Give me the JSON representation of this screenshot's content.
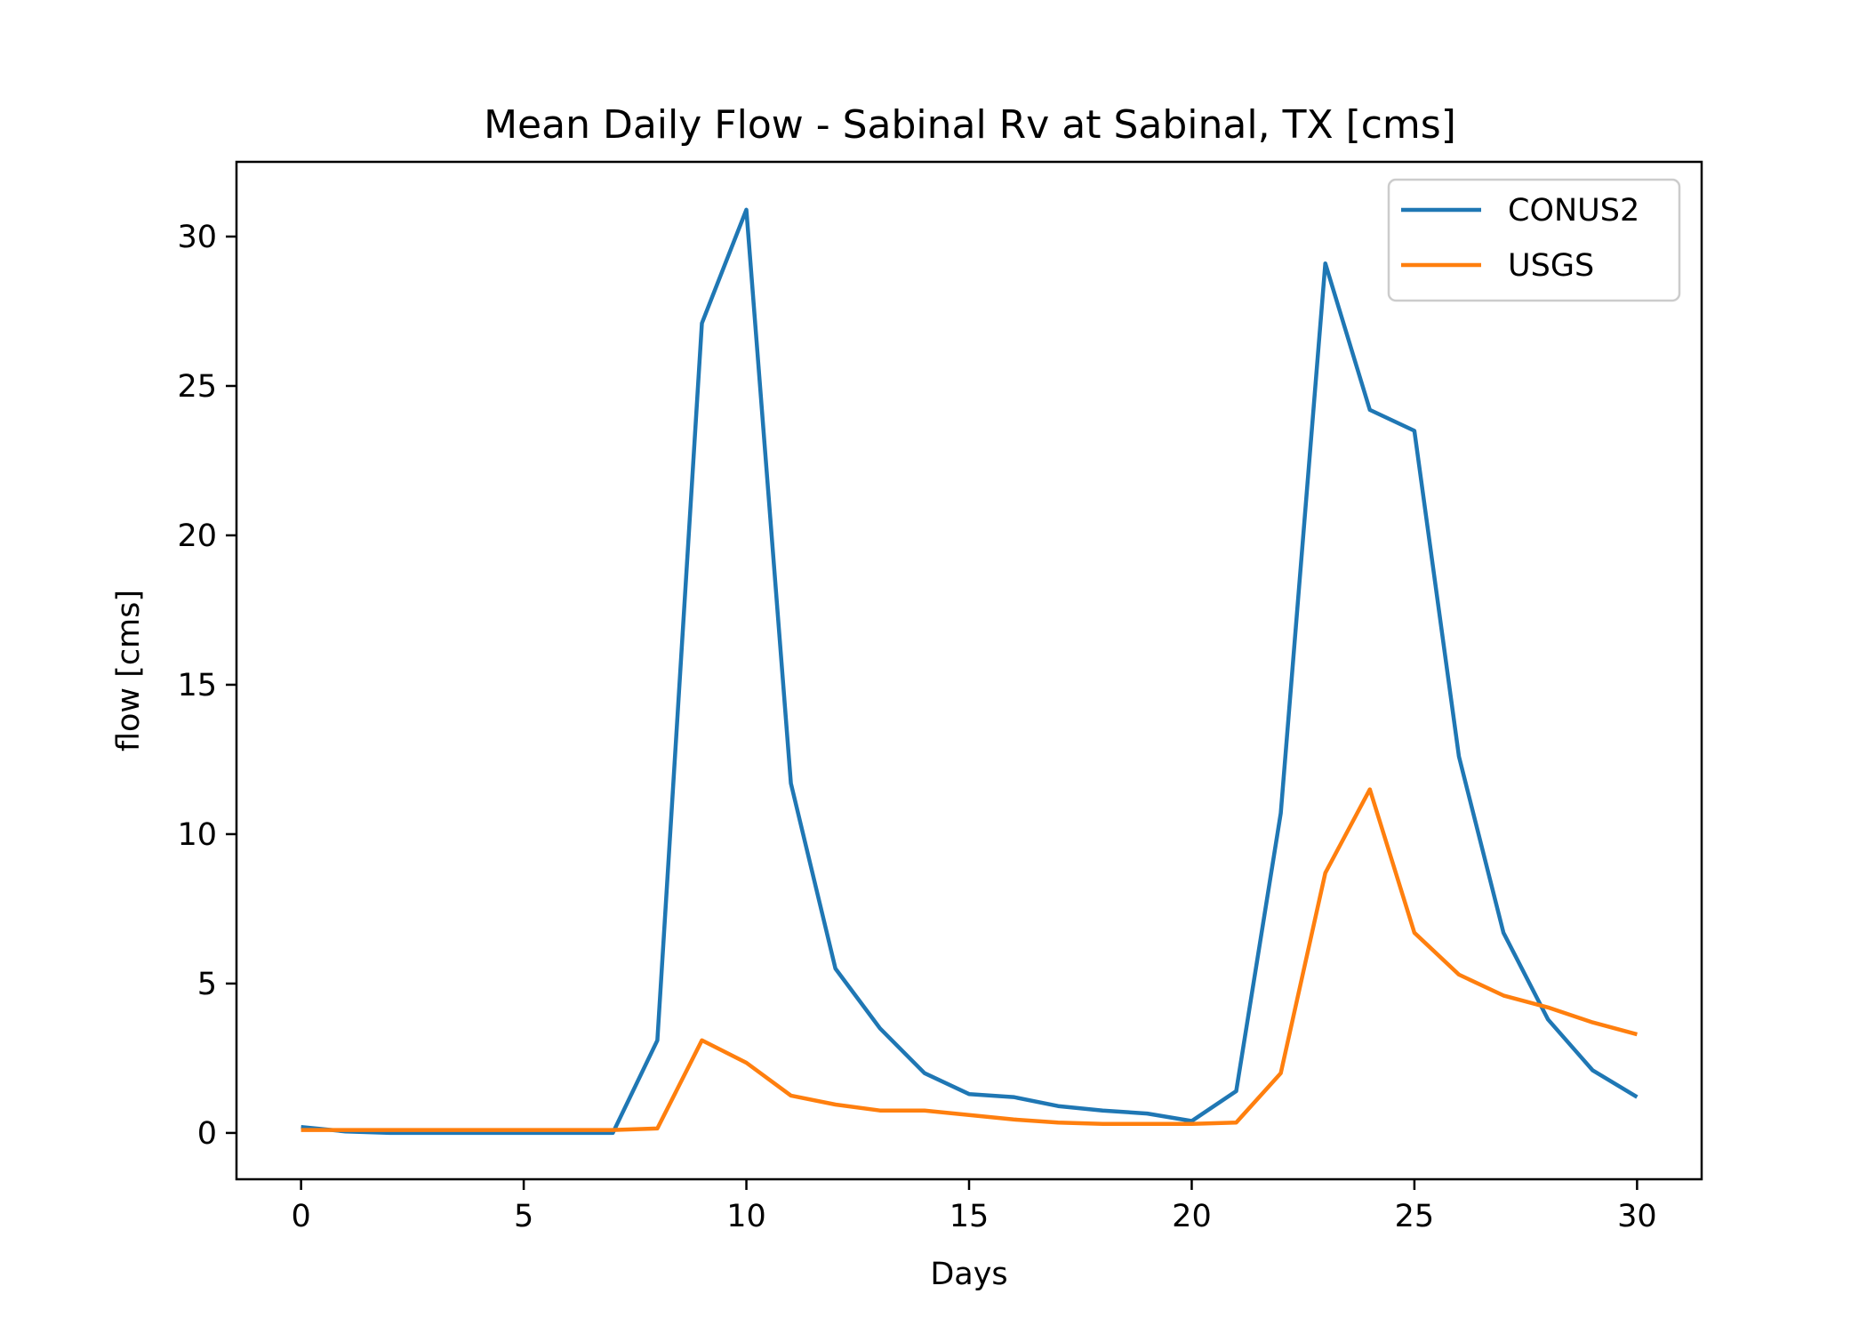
{
  "chart_data": {
    "type": "line",
    "title": "Mean Daily Flow - Sabinal Rv at Sabinal, TX [cms]",
    "xlabel": "Days",
    "ylabel": "flow [cms]",
    "xlim": [
      -1.45,
      31.45
    ],
    "ylim": [
      -1.55,
      32.5
    ],
    "xticks": [
      0,
      5,
      10,
      15,
      20,
      25,
      30
    ],
    "yticks": [
      0,
      5,
      10,
      15,
      20,
      25,
      30
    ],
    "grid": false,
    "legend_position": "top-right",
    "x": [
      0,
      1,
      2,
      3,
      4,
      5,
      6,
      7,
      8,
      9,
      10,
      11,
      12,
      13,
      14,
      15,
      16,
      17,
      18,
      19,
      20,
      21,
      22,
      23,
      24,
      25,
      26,
      27,
      28,
      29,
      30
    ],
    "series": [
      {
        "name": "CONUS2",
        "color": "#1f77b4",
        "values": [
          0.2,
          0.05,
          0.0,
          0.0,
          0.0,
          0.0,
          0.0,
          0.0,
          3.1,
          27.1,
          30.9,
          11.7,
          5.5,
          3.5,
          2.0,
          1.3,
          1.2,
          0.9,
          0.75,
          0.65,
          0.4,
          1.4,
          10.7,
          29.1,
          24.2,
          23.5,
          12.6,
          6.7,
          3.8,
          2.1,
          1.2
        ]
      },
      {
        "name": "USGS",
        "color": "#ff7f0e",
        "values": [
          0.1,
          0.1,
          0.1,
          0.1,
          0.1,
          0.1,
          0.1,
          0.1,
          0.15,
          3.1,
          2.35,
          1.25,
          0.95,
          0.75,
          0.75,
          0.6,
          0.45,
          0.35,
          0.3,
          0.3,
          0.3,
          0.35,
          2.0,
          8.7,
          11.5,
          6.7,
          5.3,
          4.6,
          4.2,
          3.7,
          3.3
        ]
      }
    ]
  }
}
